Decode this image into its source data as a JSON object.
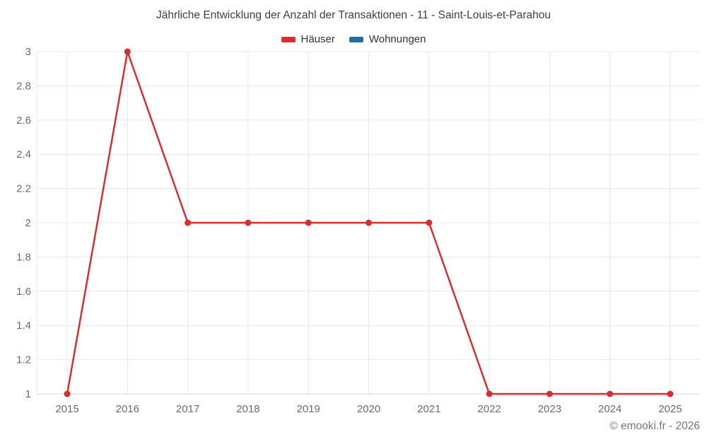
{
  "chart_data": {
    "type": "line",
    "title": "Jährliche Entwicklung der Anzahl der Transaktionen - 11 - Saint-Louis-et-Parahou",
    "categories": [
      "2015",
      "2016",
      "2017",
      "2018",
      "2019",
      "2020",
      "2021",
      "2022",
      "2023",
      "2024",
      "2025"
    ],
    "series": [
      {
        "name": "Häuser",
        "color": "#d6302e",
        "values": [
          1,
          3,
          2,
          2,
          2,
          2,
          2,
          1,
          1,
          1,
          1
        ]
      },
      {
        "name": "Wohnungen",
        "color": "#1c6ea4",
        "values": []
      }
    ],
    "ylim": [
      1,
      3
    ],
    "yticks": [
      "1",
      "1.2",
      "1.4",
      "1.6",
      "1.8",
      "2",
      "2.2",
      "2.4",
      "2.6",
      "2.8",
      "3"
    ],
    "xlabel": "",
    "ylabel": "",
    "grid": "on",
    "legend_position": "top-center",
    "colors": {
      "grid": "#e8e8e8",
      "axis_line": "#d9d9d9",
      "title_text": "#3f3f3f",
      "tick_text": "#6b6b6b"
    }
  },
  "legend": {
    "items": [
      {
        "label": "Häuser"
      },
      {
        "label": "Wohnungen"
      }
    ]
  },
  "footer": {
    "credit": "© emooki.fr - 2026"
  }
}
